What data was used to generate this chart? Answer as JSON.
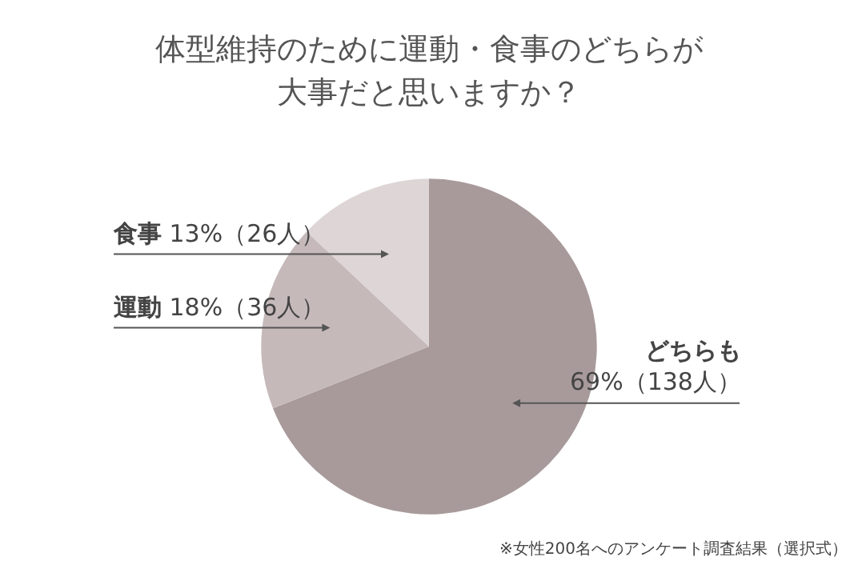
{
  "chart_data": {
    "type": "pie",
    "title": "体型維持のために運動・食事のどちらが大事だと思いますか？",
    "categories": [
      "どちらも",
      "運動",
      "食事"
    ],
    "values": [
      69,
      18,
      13
    ],
    "value_labels": [
      "69%（138人）",
      "18%（36人）",
      "13%（26人）"
    ],
    "colors": [
      "#a89a9b",
      "#c6b9ba",
      "#ddd5d6"
    ],
    "legend": false,
    "annotations": [
      "※女性200名へのアンケート調査結果（選択式）"
    ]
  }
}
